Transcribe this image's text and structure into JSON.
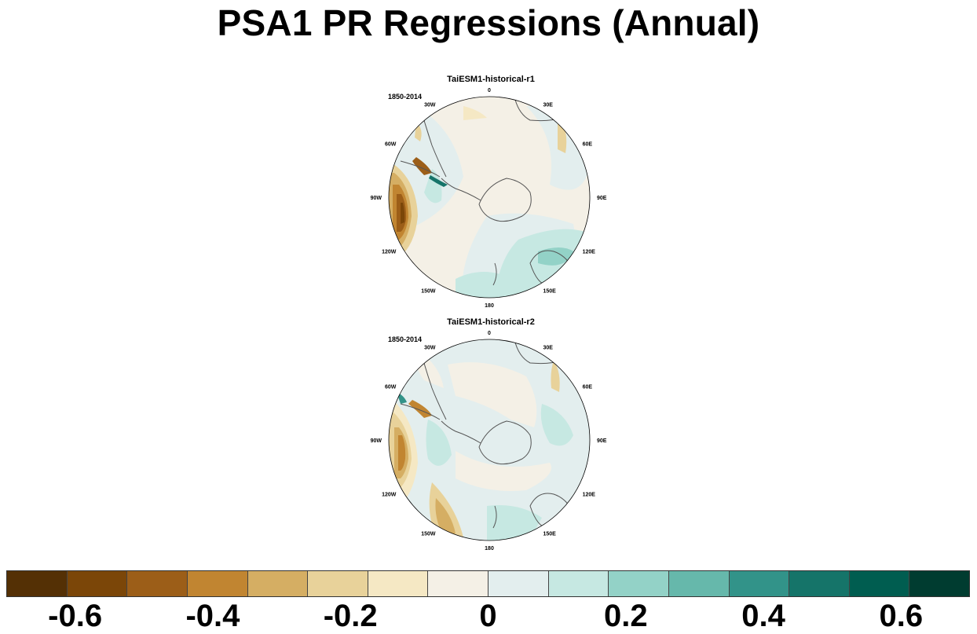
{
  "title": "PSA1 PR Regressions (Annual)",
  "panels": [
    {
      "title": "TaiESM1-historical-r1",
      "period": "1850-2014",
      "lon_labels": [
        "0",
        "30E",
        "60E",
        "90E",
        "120E",
        "150E",
        "180",
        "150W",
        "120W",
        "90W",
        "60W",
        "30W"
      ]
    },
    {
      "title": "TaiESM1-historical-r2",
      "period": "1850-2014",
      "lon_labels": [
        "0",
        "30E",
        "60E",
        "90E",
        "120E",
        "150E",
        "180",
        "150W",
        "120W",
        "90W",
        "60W",
        "30W"
      ]
    }
  ],
  "colorbar": {
    "colors": [
      "#543005",
      "#7b4608",
      "#9c5e18",
      "#c18531",
      "#d5ae63",
      "#e8d29a",
      "#f5e8c4",
      "#f4f0e6",
      "#e3eeee",
      "#c6e8e2",
      "#93d2c7",
      "#66b8ab",
      "#329389",
      "#157469",
      "#005d50",
      "#003c30"
    ],
    "labels": [
      "-0.6",
      "-0.4",
      "-0.2",
      "0",
      "0.2",
      "0.4",
      "0.6"
    ],
    "label_values": [
      -0.6,
      -0.4,
      -0.2,
      0,
      0.2,
      0.4,
      0.6
    ],
    "boundaries": [
      -0.7,
      0.7
    ]
  }
}
